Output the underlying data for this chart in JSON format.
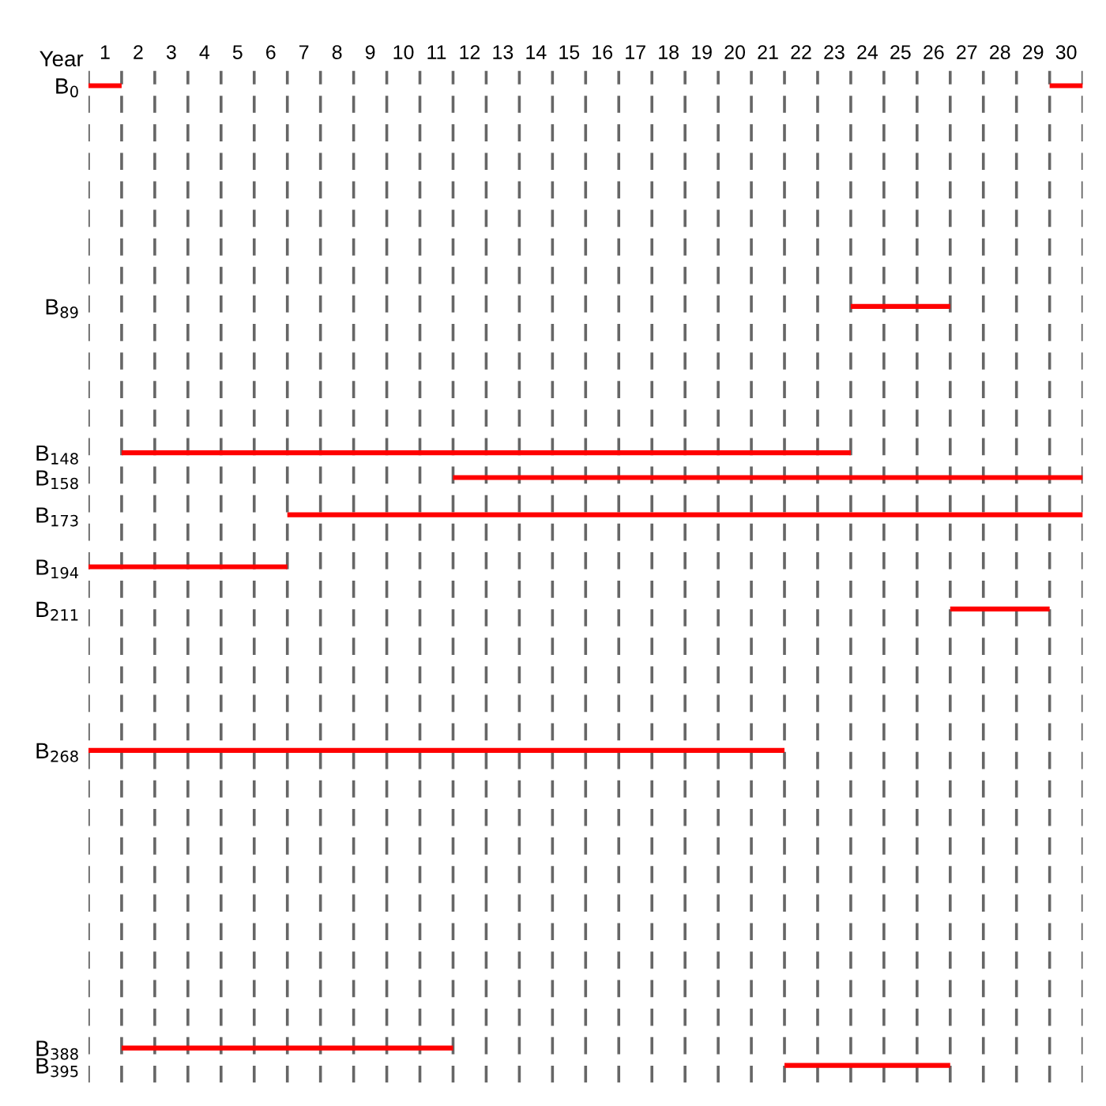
{
  "chart_data": {
    "type": "line",
    "xlabel": "Year",
    "xlim": [
      0,
      30
    ],
    "xticks": [
      {
        "value": 0.5,
        "label": "1"
      },
      {
        "value": 1.5,
        "label": "2"
      },
      {
        "value": 2.5,
        "label": "3"
      },
      {
        "value": 3.5,
        "label": "4"
      },
      {
        "value": 4.5,
        "label": "5"
      },
      {
        "value": 5.5,
        "label": "6"
      },
      {
        "value": 6.5,
        "label": "7"
      },
      {
        "value": 7.5,
        "label": "8"
      },
      {
        "value": 8.5,
        "label": "9"
      },
      {
        "value": 9.5,
        "label": "10"
      },
      {
        "value": 10.5,
        "label": "11"
      },
      {
        "value": 11.5,
        "label": "12"
      },
      {
        "value": 12.5,
        "label": "13"
      },
      {
        "value": 13.5,
        "label": "14"
      },
      {
        "value": 14.5,
        "label": "15"
      },
      {
        "value": 15.5,
        "label": "16"
      },
      {
        "value": 16.5,
        "label": "17"
      },
      {
        "value": 17.5,
        "label": "18"
      },
      {
        "value": 18.5,
        "label": "19"
      },
      {
        "value": 19.5,
        "label": "20"
      },
      {
        "value": 20.5,
        "label": "21"
      },
      {
        "value": 21.5,
        "label": "22"
      },
      {
        "value": 22.5,
        "label": "23"
      },
      {
        "value": 23.5,
        "label": "24"
      },
      {
        "value": 24.5,
        "label": "25"
      },
      {
        "value": 25.5,
        "label": "26"
      },
      {
        "value": 26.5,
        "label": "27"
      },
      {
        "value": 27.5,
        "label": "28"
      },
      {
        "value": 28.5,
        "label": "29"
      },
      {
        "value": 29.5,
        "label": "30"
      }
    ],
    "ylim": [
      402,
      -6
    ],
    "yticks": [
      {
        "value": 0,
        "label": "B$_{0}$"
      },
      {
        "value": 89,
        "label": "B$_{89}$"
      },
      {
        "value": 148,
        "label": "B$_{148}$"
      },
      {
        "value": 158,
        "label": "B$_{158}$"
      },
      {
        "value": 173,
        "label": "B$_{173}$"
      },
      {
        "value": 194,
        "label": "B$_{194}$"
      },
      {
        "value": 211,
        "label": "B$_{211}$"
      },
      {
        "value": 268,
        "label": "B$_{268}$"
      },
      {
        "value": 388,
        "label": "B$_{388}$"
      },
      {
        "value": 395,
        "label": "B$_{395}$"
      }
    ],
    "marker": "none",
    "line_style": "solid",
    "series": [
      {
        "color": "#ff0000",
        "x": [
          0,
          1
        ],
        "values": [
          0,
          0
        ]
      },
      {
        "color": "#ff0000",
        "x": [
          29,
          30
        ],
        "values": [
          0,
          0
        ]
      },
      {
        "color": "#ff0000",
        "x": [
          23,
          26
        ],
        "values": [
          89,
          89
        ]
      },
      {
        "color": "#ff0000",
        "x": [
          1,
          23
        ],
        "values": [
          148,
          148
        ]
      },
      {
        "color": "#ff0000",
        "x": [
          11,
          30
        ],
        "values": [
          158,
          158
        ]
      },
      {
        "color": "#ff0000",
        "x": [
          6,
          30
        ],
        "values": [
          173,
          173
        ]
      },
      {
        "color": "#ff0000",
        "x": [
          0,
          6
        ],
        "values": [
          194,
          194
        ]
      },
      {
        "color": "#ff0000",
        "x": [
          26,
          29
        ],
        "values": [
          211,
          211
        ]
      },
      {
        "color": "#ff0000",
        "x": [
          0,
          21
        ],
        "values": [
          268,
          268
        ]
      },
      {
        "color": "#ff0000",
        "x": [
          1,
          11
        ],
        "values": [
          388,
          388
        ]
      },
      {
        "color": "#ff0000",
        "x": [
          21,
          26
        ],
        "values": [
          395,
          395
        ]
      }
    ],
    "ref_lines": [
      {
        "axis": "x",
        "value": 0,
        "color": "#666666",
        "line_style": "dashed"
      },
      {
        "axis": "x",
        "value": 1,
        "color": "#666666",
        "line_style": "dashed"
      },
      {
        "axis": "x",
        "value": 2,
        "color": "#666666",
        "line_style": "dashed"
      },
      {
        "axis": "x",
        "value": 3,
        "color": "#666666",
        "line_style": "dashed"
      },
      {
        "axis": "x",
        "value": 4,
        "color": "#666666",
        "line_style": "dashed"
      },
      {
        "axis": "x",
        "value": 5,
        "color": "#666666",
        "line_style": "dashed"
      },
      {
        "axis": "x",
        "value": 6,
        "color": "#666666",
        "line_style": "dashed"
      },
      {
        "axis": "x",
        "value": 7,
        "color": "#666666",
        "line_style": "dashed"
      },
      {
        "axis": "x",
        "value": 8,
        "color": "#666666",
        "line_style": "dashed"
      },
      {
        "axis": "x",
        "value": 9,
        "color": "#666666",
        "line_style": "dashed"
      },
      {
        "axis": "x",
        "value": 10,
        "color": "#666666",
        "line_style": "dashed"
      },
      {
        "axis": "x",
        "value": 11,
        "color": "#666666",
        "line_style": "dashed"
      },
      {
        "axis": "x",
        "value": 12,
        "color": "#666666",
        "line_style": "dashed"
      },
      {
        "axis": "x",
        "value": 13,
        "color": "#666666",
        "line_style": "dashed"
      },
      {
        "axis": "x",
        "value": 14,
        "color": "#666666",
        "line_style": "dashed"
      },
      {
        "axis": "x",
        "value": 15,
        "color": "#666666",
        "line_style": "dashed"
      },
      {
        "axis": "x",
        "value": 16,
        "color": "#666666",
        "line_style": "dashed"
      },
      {
        "axis": "x",
        "value": 17,
        "color": "#666666",
        "line_style": "dashed"
      },
      {
        "axis": "x",
        "value": 18,
        "color": "#666666",
        "line_style": "dashed"
      },
      {
        "axis": "x",
        "value": 19,
        "color": "#666666",
        "line_style": "dashed"
      },
      {
        "axis": "x",
        "value": 20,
        "color": "#666666",
        "line_style": "dashed"
      },
      {
        "axis": "x",
        "value": 21,
        "color": "#666666",
        "line_style": "dashed"
      },
      {
        "axis": "x",
        "value": 22,
        "color": "#666666",
        "line_style": "dashed"
      },
      {
        "axis": "x",
        "value": 23,
        "color": "#666666",
        "line_style": "dashed"
      },
      {
        "axis": "x",
        "value": 24,
        "color": "#666666",
        "line_style": "dashed"
      },
      {
        "axis": "x",
        "value": 25,
        "color": "#666666",
        "line_style": "dashed"
      },
      {
        "axis": "x",
        "value": 26,
        "color": "#666666",
        "line_style": "dashed"
      },
      {
        "axis": "x",
        "value": 27,
        "color": "#666666",
        "line_style": "dashed"
      },
      {
        "axis": "x",
        "value": 28,
        "color": "#666666",
        "line_style": "dashed"
      },
      {
        "axis": "x",
        "value": 29,
        "color": "#666666",
        "line_style": "dashed"
      },
      {
        "axis": "x",
        "value": 30,
        "color": "#666666",
        "line_style": "dashed"
      }
    ]
  }
}
